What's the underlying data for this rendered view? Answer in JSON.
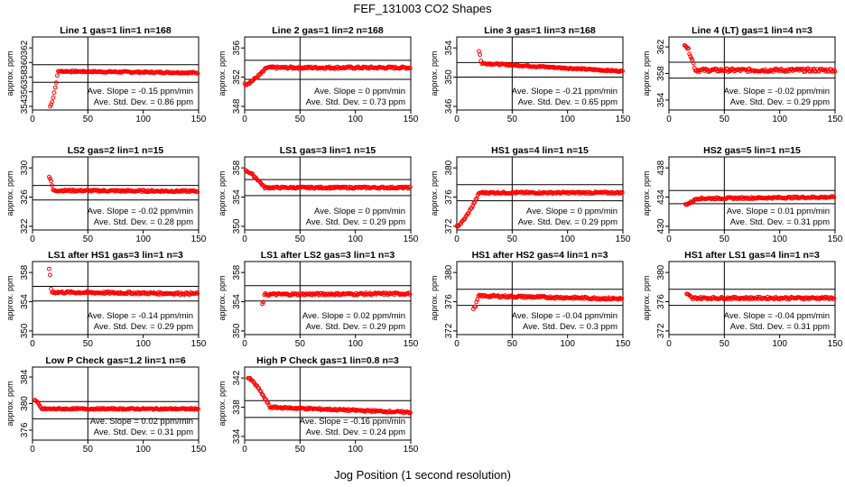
{
  "figure": {
    "title": "FEF_131003  CO2 Shapes",
    "xlabel": "Jog Position (1 second resolution)"
  },
  "colors": {
    "points": "#ff0000",
    "axes": "#000000",
    "background": "#ffffff"
  },
  "chart_data": [
    {
      "type": "scatter",
      "title": "Line 1 gas=1 lin=1 n=168",
      "ylabel": "approx. ppm",
      "xlim": [
        0,
        150
      ],
      "ylim": [
        353.5,
        363.5
      ],
      "yticks": [
        354,
        356,
        358,
        360,
        362
      ],
      "xticks": [
        0,
        50,
        100,
        150
      ],
      "hlines": [
        359.7,
        357.3
      ],
      "vline": 50,
      "slope": "Ave. Slope = -0.15 ppm/min",
      "stddev": "Ave. Std. Dev. = 0.86 ppm",
      "shape": {
        "start": 16,
        "rise_from": 354,
        "rise_to": 358.8,
        "rise_end": 23,
        "level": 358.8,
        "end_level": 358.6,
        "noise": 0.1
      }
    },
    {
      "type": "scatter",
      "title": "Line 2 gas=1 lin=2 n=168",
      "ylabel": "approx. ppm",
      "xlim": [
        0,
        150
      ],
      "ylim": [
        347.5,
        357.5
      ],
      "yticks": [
        348,
        352,
        356
      ],
      "xticks": [
        0,
        50,
        100,
        150
      ],
      "hlines": [
        354.3,
        351.7
      ],
      "vline": 50,
      "slope": "Ave. Slope = 0 ppm/min",
      "stddev": "Ave. Std. Dev. = 0.73 ppm",
      "shape": {
        "start": 0,
        "rise_from": 351,
        "rise_to": 353.3,
        "rise_end": 20,
        "level": 353.3,
        "end_level": 353.3,
        "noise": 0.15
      }
    },
    {
      "type": "scatter",
      "title": "Line 3 gas=1 lin=3 n=168",
      "ylabel": "approx. ppm",
      "xlim": [
        0,
        150
      ],
      "ylim": [
        345.5,
        355.5
      ],
      "yticks": [
        346,
        350,
        354
      ],
      "xticks": [
        0,
        50,
        100,
        150
      ],
      "hlines": [
        352,
        350
      ],
      "vline": 50,
      "slope": "Ave. Slope = -0.21 ppm/min",
      "stddev": "Ave. Std. Dev. = 0.65 ppm",
      "shape": {
        "start": 20,
        "rise_from": 353.6,
        "rise_to": 352,
        "rise_end": 22,
        "level": 351.9,
        "end_level": 350.8,
        "noise": 0.1
      }
    },
    {
      "type": "scatter",
      "title": "Line 4 (LT) gas=1 lin=4 n=3",
      "ylabel": "approx. ppm",
      "xlim": [
        0,
        150
      ],
      "ylim": [
        352.5,
        363.5
      ],
      "yticks": [
        354,
        358,
        362
      ],
      "xticks": [
        0,
        50,
        100,
        150
      ],
      "hlines": [
        359.7,
        357.3
      ],
      "vline": 50,
      "slope": "Ave. Slope = -0.02 ppm/min",
      "stddev": "Ave. Std. Dev. = 0.29 ppm",
      "shape": {
        "start": 14,
        "rise_from": 362.5,
        "rise_to": 358.5,
        "rise_end": 24,
        "level": 358.5,
        "end_level": 358.5,
        "noise": 0.25
      }
    },
    {
      "type": "scatter",
      "title": "LS2 gas=2 lin=1 n=15",
      "ylabel": "approx. ppm",
      "xlim": [
        0,
        150
      ],
      "ylim": [
        321.5,
        331.5
      ],
      "yticks": [
        322,
        326,
        330
      ],
      "xticks": [
        0,
        50,
        100,
        150
      ],
      "hlines": [
        327.6,
        325.6
      ],
      "vline": 50,
      "slope": "Ave. Slope = -0.02 ppm/min",
      "stddev": "Ave. Std. Dev. = 0.28 ppm",
      "shape": {
        "start": 15,
        "rise_from": 328.8,
        "rise_to": 326.7,
        "rise_end": 19,
        "level": 326.9,
        "end_level": 326.8,
        "noise": 0.12
      }
    },
    {
      "type": "scatter",
      "title": "LS1 gas=3 lin=1 n=15",
      "ylabel": "approx. ppm",
      "xlim": [
        0,
        150
      ],
      "ylim": [
        349.5,
        359.5
      ],
      "yticks": [
        350,
        354,
        358
      ],
      "xticks": [
        0,
        50,
        100,
        150
      ],
      "hlines": [
        356.4,
        354.2
      ],
      "vline": 50,
      "slope": "Ave. Slope = 0 ppm/min",
      "stddev": "Ave. Std. Dev. = 0.29 ppm",
      "shape": {
        "start": 1,
        "rise_from": 357.6,
        "rise_to": 355.3,
        "rise_end": 18,
        "level": 355.3,
        "end_level": 355.3,
        "noise": 0.12
      }
    },
    {
      "type": "scatter",
      "title": "HS1 gas=4 lin=1 n=15",
      "ylabel": "approx. ppm",
      "xlim": [
        0,
        150
      ],
      "ylim": [
        371.5,
        381.5
      ],
      "yticks": [
        372,
        376,
        380
      ],
      "xticks": [
        0,
        50,
        100,
        150
      ],
      "hlines": [
        377.7,
        375.5
      ],
      "vline": 50,
      "slope": "Ave. Slope = 0 ppm/min",
      "stddev": "Ave. Std. Dev. = 0.29 ppm",
      "shape": {
        "start": 0,
        "rise_from": 372,
        "rise_to": 376.5,
        "rise_end": 20,
        "level": 376.6,
        "end_level": 376.6,
        "noise": 0.12
      }
    },
    {
      "type": "scatter",
      "title": "HS2 gas=5 lin=1 n=15",
      "ylabel": "approx. ppm",
      "xlim": [
        0,
        150
      ],
      "ylim": [
        429.5,
        439.5
      ],
      "yticks": [
        430,
        434,
        438
      ],
      "xticks": [
        0,
        50,
        100,
        150
      ],
      "hlines": [
        434.9,
        433.1
      ],
      "vline": 50,
      "slope": "Ave. Slope = 0.01 ppm/min",
      "stddev": "Ave. Std. Dev. = 0.31 ppm",
      "shape": {
        "start": 15,
        "rise_from": 433,
        "rise_to": 433.8,
        "rise_end": 25,
        "level": 433.8,
        "end_level": 434,
        "noise": 0.12
      }
    },
    {
      "type": "scatter",
      "title": "LS1 after HS1 gas=3 lin=1 n=3",
      "ylabel": "approx. ppm",
      "xlim": [
        0,
        150
      ],
      "ylim": [
        349.5,
        359.5
      ],
      "yticks": [
        350,
        354,
        358
      ],
      "xticks": [
        0,
        50,
        100,
        150
      ],
      "hlines": [
        356.1,
        354.1
      ],
      "vline": 50,
      "slope": "Ave. Slope = -0.14 ppm/min",
      "stddev": "Ave. Std. Dev. = 0.29 ppm",
      "shape": {
        "start": 15,
        "rise_from": 358.6,
        "rise_to": 355.3,
        "rise_end": 17,
        "level": 355.3,
        "end_level": 355.1,
        "noise": 0.15
      }
    },
    {
      "type": "scatter",
      "title": "LS1 after LS2 gas=3 lin=1 n=3",
      "ylabel": "approx. ppm",
      "xlim": [
        0,
        150
      ],
      "ylim": [
        349.5,
        359.5
      ],
      "yticks": [
        350,
        354,
        358
      ],
      "xticks": [
        0,
        50,
        100,
        150
      ],
      "hlines": [
        356.2,
        354.1
      ],
      "vline": 50,
      "slope": "Ave. Slope = 0.02 ppm/min",
      "stddev": "Ave. Std. Dev. = 0.29 ppm",
      "shape": {
        "start": 16,
        "rise_from": 353.6,
        "rise_to": 355,
        "rise_end": 18,
        "level": 355,
        "end_level": 355.1,
        "noise": 0.15
      }
    },
    {
      "type": "scatter",
      "title": "HS1 after HS2 gas=4 lin=1 n=3",
      "ylabel": "approx. ppm",
      "xlim": [
        0,
        150
      ],
      "ylim": [
        371.5,
        381.5
      ],
      "yticks": [
        372,
        376,
        380
      ],
      "xticks": [
        0,
        50,
        100,
        150
      ],
      "hlines": [
        377.7,
        375.5
      ],
      "vline": 50,
      "slope": "Ave. Slope = -0.04 ppm/min",
      "stddev": "Ave. Std. Dev. = 0.3 ppm",
      "shape": {
        "start": 15,
        "rise_from": 375,
        "rise_to": 377,
        "rise_end": 20,
        "level": 376.8,
        "end_level": 376.4,
        "noise": 0.15
      }
    },
    {
      "type": "scatter",
      "title": "HS1 after LS1 gas=4 lin=1 n=3",
      "ylabel": "approx. ppm",
      "xlim": [
        0,
        150
      ],
      "ylim": [
        371.5,
        381.5
      ],
      "yticks": [
        372,
        376,
        380
      ],
      "xticks": [
        0,
        50,
        100,
        150
      ],
      "hlines": [
        377.7,
        375.5
      ],
      "vline": 50,
      "slope": "Ave. Slope = -0.04 ppm/min",
      "stddev": "Ave. Std. Dev. = 0.31 ppm",
      "shape": {
        "start": 16,
        "rise_from": 377,
        "rise_to": 376.3,
        "rise_end": 22,
        "level": 376.5,
        "end_level": 376.5,
        "noise": 0.15
      }
    },
    {
      "type": "scatter",
      "title": "Low P Check gas=1.2 lin=1 n=6",
      "ylabel": "approx. ppm",
      "xlim": [
        0,
        150
      ],
      "ylim": [
        374.5,
        385.5
      ],
      "yticks": [
        376,
        380,
        384
      ],
      "xticks": [
        0,
        50,
        100,
        150
      ],
      "hlines": [
        380.3,
        377.7
      ],
      "vline": 50,
      "slope": "Ave. Slope = 0.02 ppm/min",
      "stddev": "Ave. Std. Dev. = 0.31 ppm",
      "shape": {
        "start": 2,
        "rise_from": 380.5,
        "rise_to": 379.2,
        "rise_end": 8,
        "level": 379.2,
        "end_level": 379.2,
        "noise": 0.1
      }
    },
    {
      "type": "scatter",
      "title": "High P Check gas=1 lin=0.8 n=3",
      "ylabel": "approx. ppm",
      "xlim": [
        0,
        150
      ],
      "ylim": [
        333.5,
        343.5
      ],
      "yticks": [
        334,
        338,
        342
      ],
      "xticks": [
        0,
        50,
        100,
        150
      ],
      "hlines": [
        338.9,
        336.6
      ],
      "vline": 50,
      "slope": "Ave. Slope = -0.16 ppm/min",
      "stddev": "Ave. Std. Dev. = 0.24 ppm",
      "shape": {
        "start": 3,
        "rise_from": 342,
        "rise_to": 338.2,
        "rise_end": 22,
        "level": 338,
        "end_level": 337.3,
        "noise": 0.12
      }
    }
  ]
}
